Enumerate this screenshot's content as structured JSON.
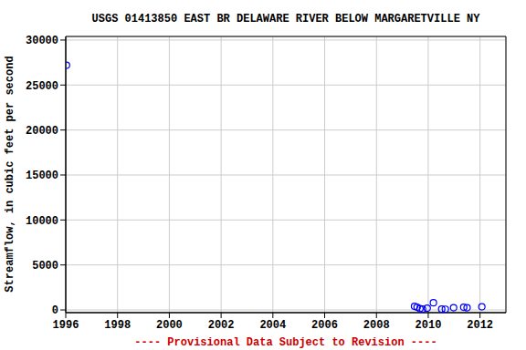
{
  "chart_data": {
    "type": "scatter",
    "title": "USGS 01413850 EAST BR DELAWARE RIVER BELOW MARGARETVILLE NY",
    "subtitle": "---- Provisional Data Subject to Revision ----",
    "y_label": "Streamflow, in cubic feet per second",
    "x": [
      1996.03,
      2009.47,
      2009.57,
      2009.68,
      2009.78,
      2009.96,
      2010.2,
      2010.52,
      2010.66,
      2010.98,
      2011.37,
      2011.5,
      2012.07
    ],
    "values": [
      27200,
      400,
      300,
      150,
      100,
      200,
      800,
      100,
      80,
      250,
      300,
      250,
      350
    ],
    "color": "#0000ff",
    "marker": "circle",
    "xlim": [
      1996,
      2013
    ],
    "xticks": [
      1996,
      1998,
      2000,
      2002,
      2004,
      2006,
      2008,
      2010,
      2012
    ],
    "ylim": [
      -300,
      30400
    ],
    "yticks": [
      0,
      5000,
      10000,
      15000,
      20000,
      25000,
      30000
    ],
    "grid": true
  }
}
